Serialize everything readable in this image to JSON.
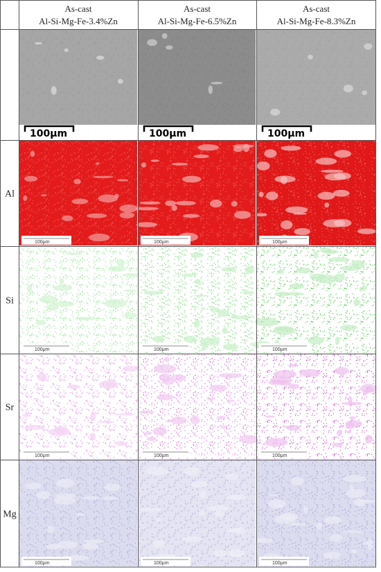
{
  "table": {
    "columns": [
      {
        "title": "As-cast",
        "alloy": "Al-Si-Mg-Fe-3.4%Zn"
      },
      {
        "title": "As-cast",
        "alloy": "Al-Si-Mg-Fe-6.5%Zn"
      },
      {
        "title": "As-cast",
        "alloy": "Al-Si-Mg-Fe-8.3%Zn"
      }
    ],
    "rows": [
      {
        "scale_bars": [
          "100μm",
          "100μm",
          "100μm"
        ]
      },
      {
        "label": "Al",
        "scale_bars": [
          "100μm",
          "100μm",
          "100μm"
        ]
      },
      {
        "label": "Si",
        "scale_bars": [
          "100μm",
          "100μm",
          "100μm"
        ]
      },
      {
        "label": "Sr",
        "scale_bars": [
          "100μm",
          "100μm",
          "100μm"
        ]
      },
      {
        "label": "Mg",
        "scale_bars": [
          "100μm",
          "100μm",
          "100μm"
        ]
      }
    ]
  }
}
